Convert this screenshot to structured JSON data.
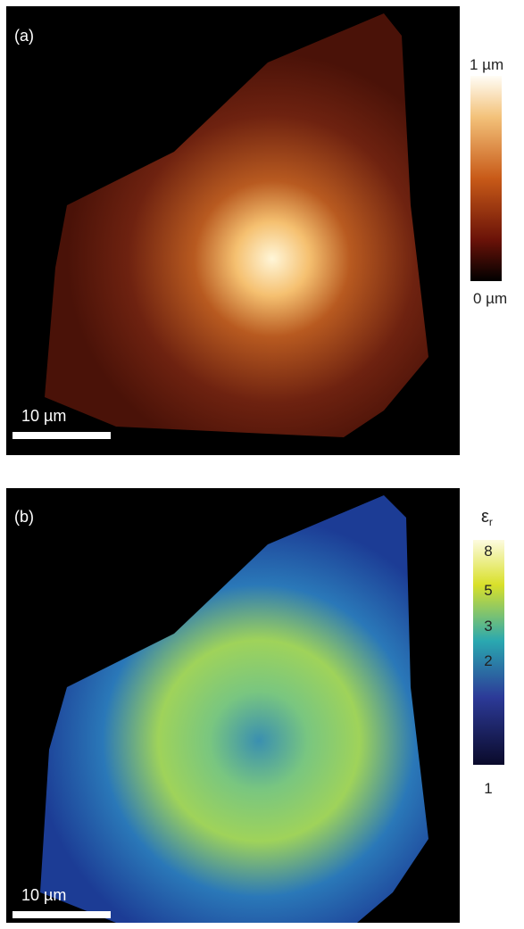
{
  "panels": [
    {
      "label": "(a)",
      "scale_bar": "10 µm",
      "colorbar": {
        "top": "1 µm",
        "bottom": "0 µm"
      }
    },
    {
      "label": "(b)",
      "scale_bar": "10 µm",
      "colorbar": {
        "title": "ε",
        "subscript": "r",
        "ticks": [
          "8",
          "5",
          "3",
          "2",
          "1"
        ]
      }
    }
  ]
}
